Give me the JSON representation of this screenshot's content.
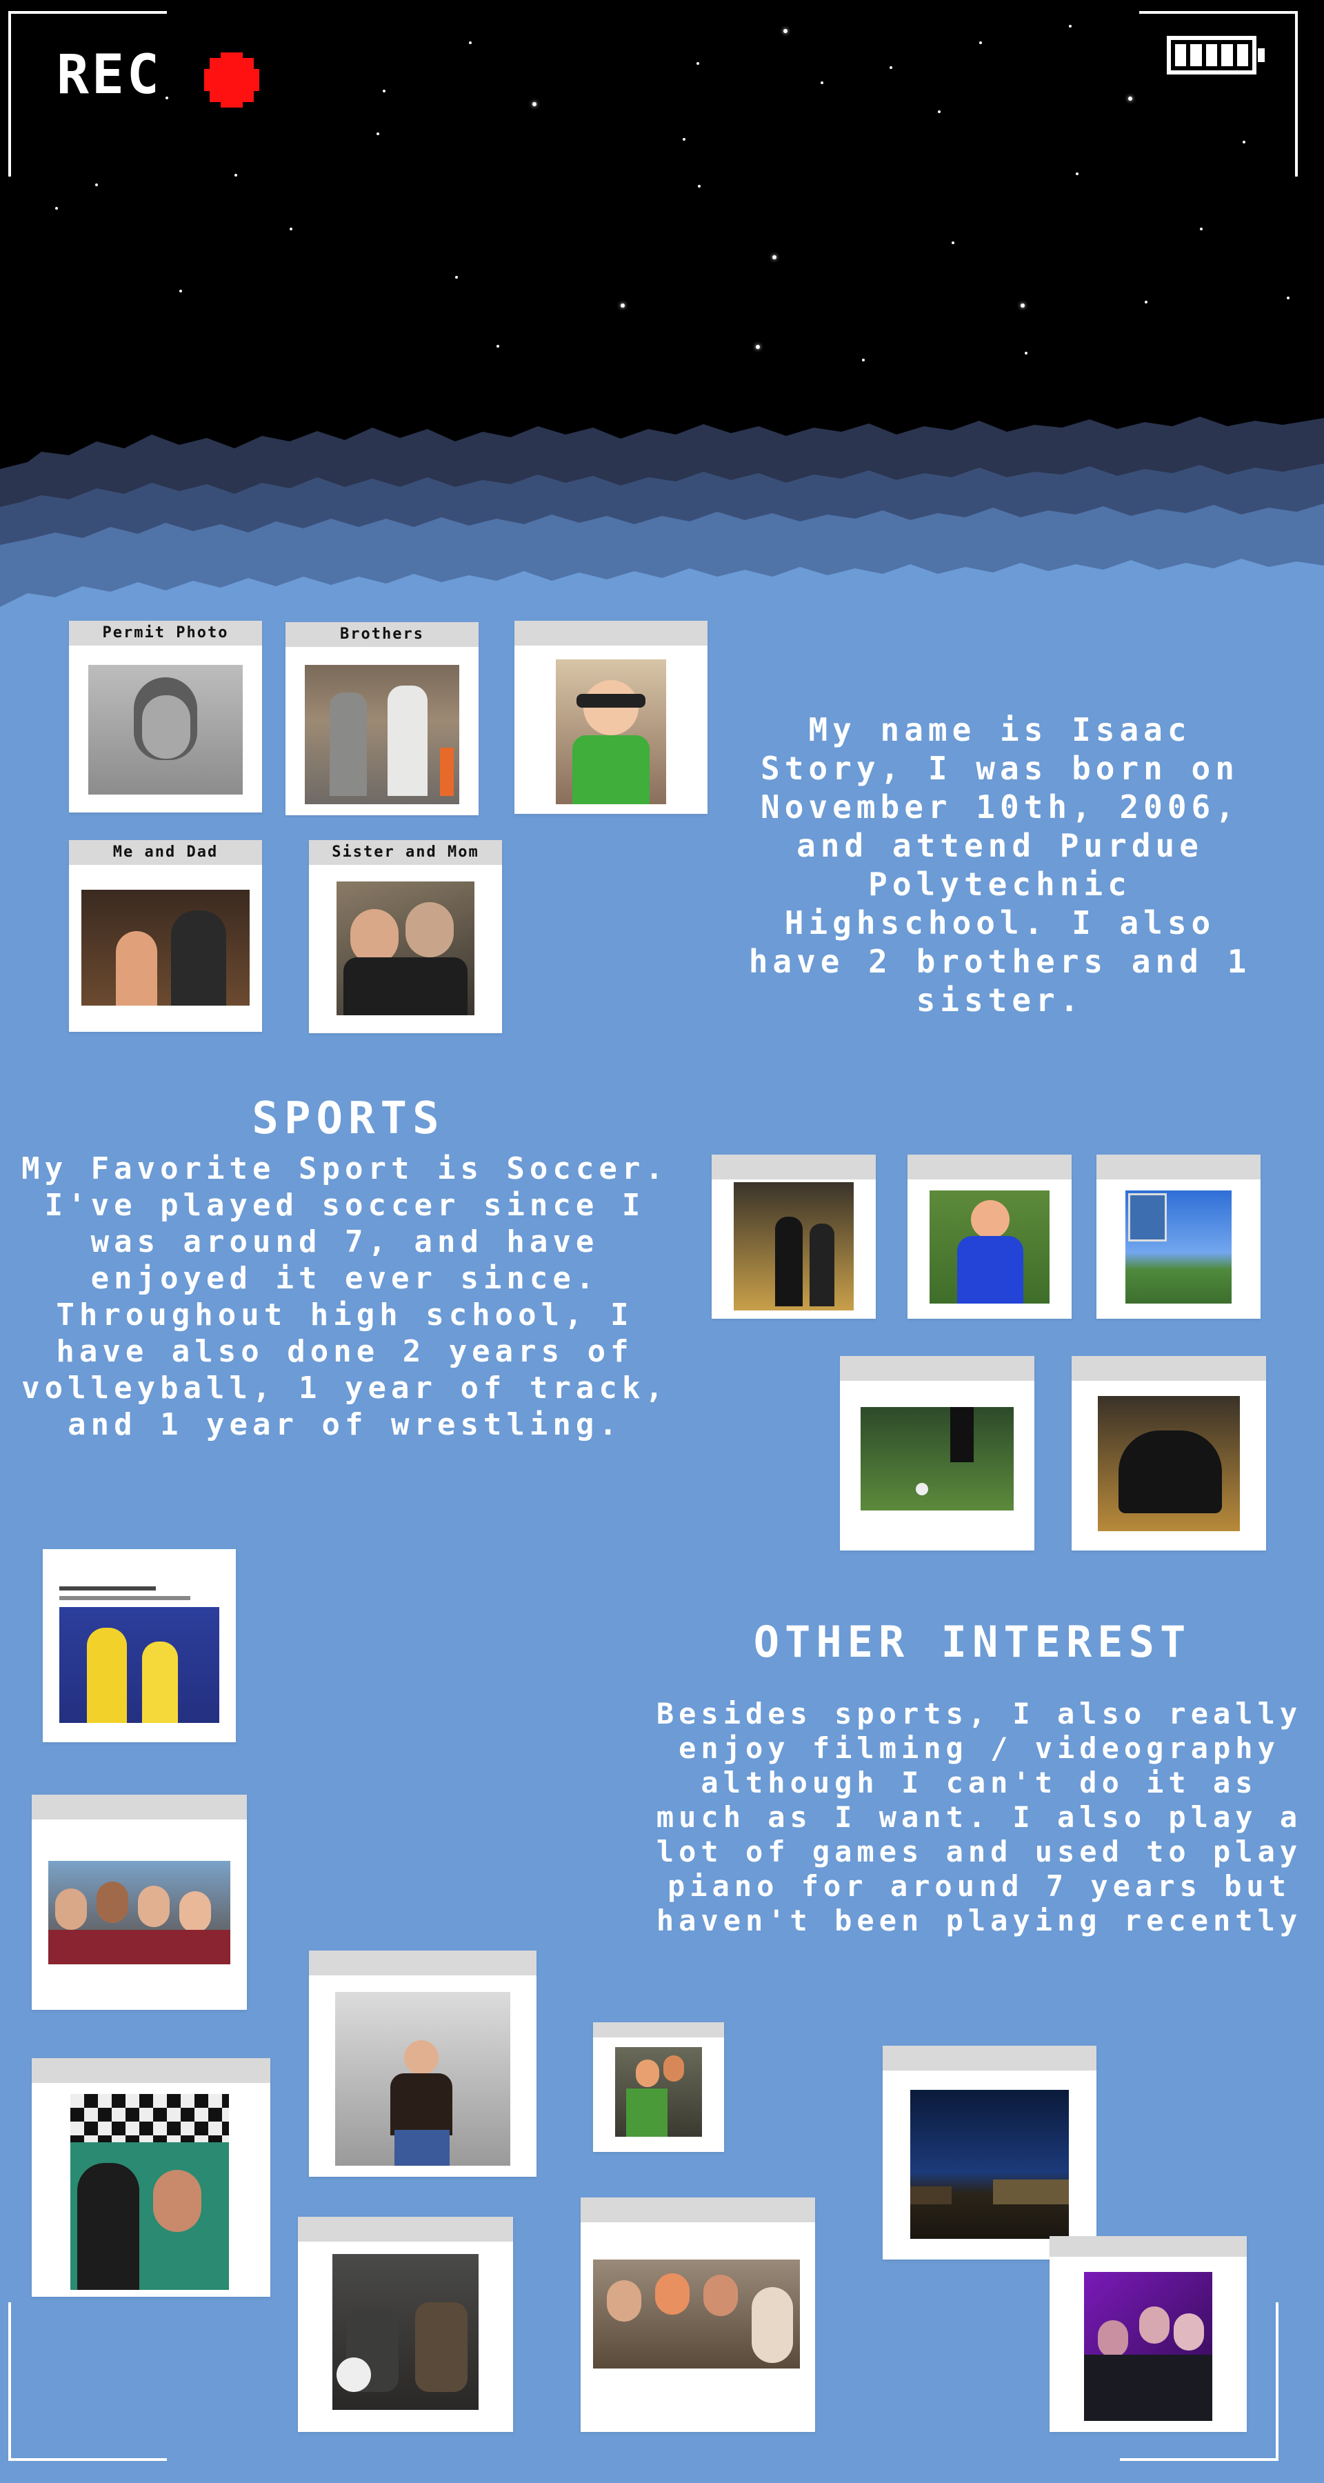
{
  "overlay": {
    "rec_label": "REC",
    "rec_color": "#ff1111",
    "battery_icon": "battery-full-icon"
  },
  "photos": {
    "permit": {
      "label": "Permit Photo"
    },
    "brothers": {
      "label": "Brothers"
    },
    "me_and_dad": {
      "label": "Me and Dad"
    },
    "sister_and_mom": {
      "label": "Sister and Mom"
    }
  },
  "bio": {
    "text": "My name is Isaac Story, I was born on November 10th, 2006, and attend Purdue Polytechnic Highschool. I also have 2 brothers and 1 sister."
  },
  "sports": {
    "heading": "SPORTS",
    "text": "My Favorite Sport is Soccer. I've played soccer since I was around 7, and have enjoyed it ever since. Throughout high school, I have also done 2 years of volleyball, 1 year of track, and 1 year of wrestling."
  },
  "other": {
    "heading": "OTHER INTEREST",
    "text": "Besides sports, I also really enjoy filming / videography although I can't do it as much as I want. I also play a lot of games and used to play piano for around 7 years but haven't been playing recently"
  },
  "colors": {
    "background": "#6c9bd5",
    "card": "#ffffff",
    "card_tab": "#d9d9d9",
    "sky": "#000000"
  }
}
